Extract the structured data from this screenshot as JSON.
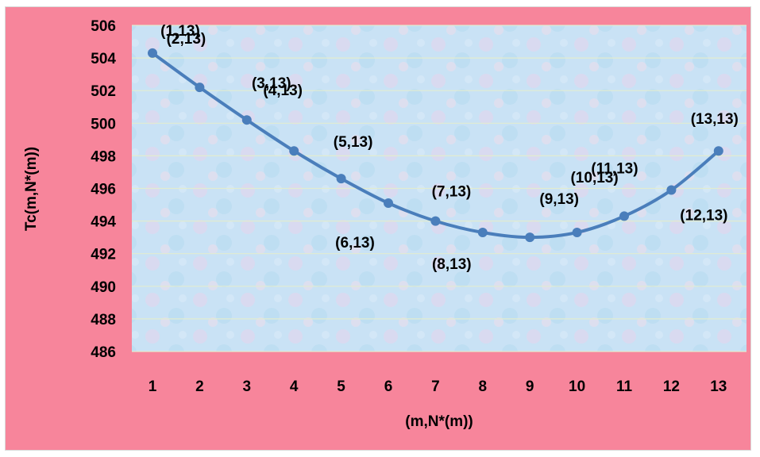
{
  "chart_data": {
    "type": "line",
    "title": "",
    "xlabel": "(m,N*(m))",
    "ylabel": "Tc(m,N*(m))",
    "x": [
      1,
      2,
      3,
      4,
      5,
      6,
      7,
      8,
      9,
      10,
      11,
      12,
      13
    ],
    "x_tick_labels": [
      "1",
      "2",
      "3",
      "4",
      "5",
      "6",
      "7",
      "8",
      "9",
      "10",
      "11",
      "12",
      "13"
    ],
    "y_tick_labels": [
      "486",
      "488",
      "490",
      "492",
      "494",
      "496",
      "498",
      "500",
      "502",
      "504",
      "506"
    ],
    "ylim": [
      486,
      506
    ],
    "grid": true,
    "series": [
      {
        "values": [
          504.3,
          502.2,
          500.2,
          498.3,
          496.6,
          495.1,
          494.0,
          493.3,
          493.0,
          493.3,
          494.3,
          495.9,
          498.3
        ],
        "point_labels": [
          "(1,13)",
          "(2,13)",
          "(3,13)",
          "(4,13)",
          "(5,13)",
          "(6,13)",
          "(7,13)",
          "(8,13)",
          "(9,13)",
          "(10,13)",
          "(11,13)",
          "(12,13)",
          "(13,13)"
        ],
        "color": "#4a7ebb"
      }
    ],
    "colors": {
      "frame": "#f7859b",
      "plot_bg": "#c9e2f5",
      "line": "#4a7ebb"
    }
  }
}
